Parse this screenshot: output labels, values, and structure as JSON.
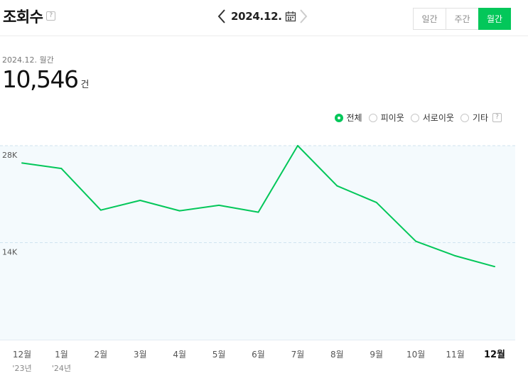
{
  "header": {
    "title": "조회수",
    "help": "?",
    "date": "2024.12.",
    "tabs": [
      "일간",
      "주간",
      "월간"
    ],
    "active_tab": "월간"
  },
  "summary": {
    "period": "2024.12. 월간",
    "total": "10,546",
    "unit": "건"
  },
  "legend": {
    "items": [
      {
        "label": "전체",
        "selected": true
      },
      {
        "label": "피이웃",
        "selected": false
      },
      {
        "label": "서로이웃",
        "selected": false
      },
      {
        "label": "기타",
        "selected": false
      }
    ],
    "help": "?"
  },
  "colors": {
    "accent": "#03c75a",
    "plot_bg": "#f4fafd",
    "grid": "#cfe3ef"
  },
  "chart_data": {
    "type": "line",
    "categories": [
      "12월",
      "1월",
      "2월",
      "3월",
      "4월",
      "5월",
      "6월",
      "7월",
      "8월",
      "9월",
      "10월",
      "11월",
      "12월"
    ],
    "year_labels": [
      "'23년",
      "'24년",
      "",
      "",
      "",
      "",
      "",
      "",
      "",
      "",
      "",
      "",
      ""
    ],
    "values": [
      25500,
      24700,
      18700,
      20100,
      18600,
      19400,
      18400,
      28000,
      22200,
      19800,
      14200,
      12100,
      10546
    ],
    "yticks": [
      {
        "value": 14000,
        "label": "14K"
      },
      {
        "value": 28000,
        "label": "28K"
      }
    ],
    "ylim": [
      0,
      28000
    ],
    "grid": true,
    "highlight_index": 12
  }
}
